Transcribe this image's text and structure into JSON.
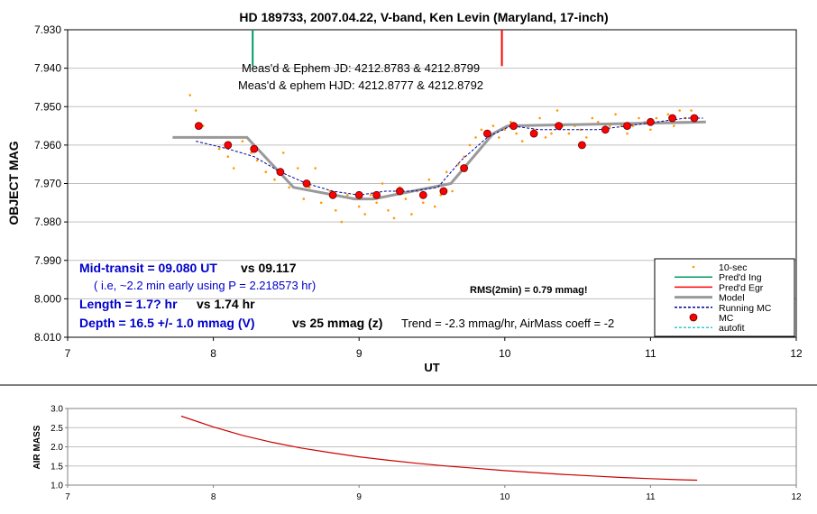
{
  "chart_data": [
    {
      "type": "scatter",
      "title": "HD 189733, 2007.04.22, V-band, Ken Levin (Maryland, 17-inch)",
      "xlabel": "UT",
      "ylabel": "OBJECT MAG",
      "xlim": [
        7,
        12
      ],
      "ylim": [
        7.93,
        8.01
      ],
      "y_inverted": true,
      "grid": "horizontal",
      "x_ticks": [
        "7",
        "8",
        "9",
        "10",
        "11",
        "12"
      ],
      "y_ticks": [
        "7.930",
        "7.940",
        "7.950",
        "7.960",
        "7.970",
        "7.980",
        "7.990",
        "8.000",
        "8.010"
      ],
      "legend_position": "bottom-right",
      "series": [
        {
          "name": "10-sec",
          "color": "#ff9900",
          "x": [
            7.84,
            7.88,
            7.93,
            7.98,
            8.04,
            8.1,
            8.14,
            8.2,
            8.26,
            8.3,
            8.36,
            8.42,
            8.48,
            8.52,
            8.58,
            8.62,
            8.66,
            8.7,
            8.74,
            8.8,
            8.84,
            8.88,
            8.92,
            8.96,
            9.0,
            9.04,
            9.08,
            9.12,
            9.16,
            9.2,
            9.24,
            9.28,
            9.32,
            9.36,
            9.4,
            9.44,
            9.48,
            9.52,
            9.56,
            9.6,
            9.64,
            9.68,
            9.72,
            9.76,
            9.8,
            9.84,
            9.88,
            9.92,
            9.96,
            10.0,
            10.04,
            10.08,
            10.12,
            10.16,
            10.2,
            10.24,
            10.28,
            10.32,
            10.36,
            10.4,
            10.44,
            10.48,
            10.52,
            10.56,
            10.6,
            10.64,
            10.68,
            10.72,
            10.76,
            10.8,
            10.84,
            10.88,
            10.92,
            10.96,
            11.0,
            11.04,
            11.08,
            11.12,
            11.16,
            11.2,
            11.24,
            11.28
          ],
          "y": [
            7.947,
            7.951,
            7.955,
            7.958,
            7.961,
            7.963,
            7.966,
            7.959,
            7.962,
            7.964,
            7.967,
            7.969,
            7.962,
            7.971,
            7.966,
            7.974,
            7.971,
            7.966,
            7.975,
            7.972,
            7.977,
            7.98,
            7.973,
            7.974,
            7.976,
            7.978,
            7.973,
            7.975,
            7.97,
            7.977,
            7.979,
            7.971,
            7.974,
            7.978,
            7.972,
            7.975,
            7.969,
            7.976,
            7.973,
            7.967,
            7.972,
            7.965,
            7.963,
            7.96,
            7.958,
            7.956,
            7.957,
            7.955,
            7.958,
            7.956,
            7.954,
            7.957,
            7.959,
            7.955,
            7.956,
            7.953,
            7.958,
            7.957,
            7.951,
            7.955,
            7.957,
            7.955,
            7.956,
            7.958,
            7.953,
            7.954,
            7.956,
            7.955,
            7.952,
            7.955,
            7.957,
            7.955,
            7.953,
            7.954,
            7.956,
            7.953,
            7.954,
            7.952,
            7.955,
            7.951,
            7.953,
            7.951
          ]
        },
        {
          "name": "Pred'd Ing",
          "color": "#009966",
          "x": [
            8.27,
            8.27
          ],
          "y": [
            7.93,
            7.935
          ]
        },
        {
          "name": "Pred'd Egr",
          "color": "#ff0000",
          "x": [
            9.98,
            9.98
          ],
          "y": [
            7.93,
            7.935
          ]
        },
        {
          "name": "Model",
          "color": "#999999",
          "x": [
            7.72,
            8.23,
            8.55,
            8.97,
            9.1,
            9.63,
            9.92,
            10.02,
            11.38
          ],
          "y": [
            7.958,
            7.958,
            7.971,
            7.974,
            7.974,
            7.97,
            7.957,
            7.955,
            7.954
          ]
        },
        {
          "name": "Running MC",
          "color": "#000099",
          "x": [
            7.88,
            8.1,
            8.28,
            8.46,
            8.64,
            8.82,
            9.0,
            9.18,
            9.36,
            9.54,
            9.7,
            9.88,
            10.04,
            10.24,
            10.44,
            10.64,
            10.84,
            11.04,
            11.24,
            11.36
          ],
          "y": [
            7.959,
            7.961,
            7.963,
            7.967,
            7.97,
            7.972,
            7.973,
            7.972,
            7.972,
            7.971,
            7.964,
            7.958,
            7.955,
            7.956,
            7.956,
            7.956,
            7.955,
            7.954,
            7.953,
            7.953
          ]
        },
        {
          "name": "MC",
          "color": "#ff0000",
          "x": [
            7.9,
            8.1,
            8.28,
            8.46,
            8.64,
            8.82,
            9.0,
            9.12,
            9.28,
            9.44,
            9.58,
            9.72,
            9.88,
            10.06,
            10.2,
            10.37,
            10.53,
            10.69,
            10.84,
            11.0,
            11.15,
            11.3
          ],
          "y": [
            7.955,
            7.96,
            7.961,
            7.967,
            7.97,
            7.973,
            7.973,
            7.973,
            7.972,
            7.973,
            7.972,
            7.966,
            7.957,
            7.955,
            7.957,
            7.955,
            7.96,
            7.956,
            7.955,
            7.954,
            7.953,
            7.953
          ]
        },
        {
          "name": "autofit",
          "color": "#33cccc",
          "x": [],
          "y": []
        }
      ],
      "annotations": {
        "jd": "Meas'd & Ephem JD: 4212.8783 & 4212.8799",
        "hjd": "Meas'd & ephem HJD: 4212.8777 & 4212.8792",
        "mid_transit": "Mid-transit = 09.080 UT",
        "mid_transit_vs": "vs 09.117",
        "early_note": "( i.e, ~2.2 min early using P = 2.218573 hr)",
        "length": "Length = 1.7? hr",
        "length_vs": "vs 1.74 hr",
        "depth": "Depth = 16.5 +/- 1.0 mmag (V)",
        "depth_vs": "vs 25 mmag (z)",
        "rms": "RMS(2min) = 0.79 mmag!",
        "trend": "Trend = -2.3 mmag/hr, AirMass coeff = -2"
      }
    },
    {
      "type": "line",
      "title": "",
      "xlabel": "",
      "ylabel": "AIR MASS",
      "xlim": [
        7,
        12
      ],
      "ylim": [
        1.0,
        3.0
      ],
      "grid": "horizontal",
      "x_ticks": [
        "7",
        "8",
        "9",
        "10",
        "11",
        "12"
      ],
      "y_ticks": [
        "3.0",
        "2.5",
        "2.0",
        "1.5",
        "1.0"
      ],
      "series": [
        {
          "color": "#cc0000",
          "x": [
            7.78,
            8.0,
            8.2,
            8.4,
            8.6,
            8.8,
            9.0,
            9.2,
            9.4,
            9.6,
            9.8,
            10.0,
            10.2,
            10.4,
            10.6,
            10.8,
            11.0,
            11.2,
            11.32
          ],
          "y": [
            2.8,
            2.52,
            2.3,
            2.12,
            1.97,
            1.85,
            1.74,
            1.65,
            1.57,
            1.5,
            1.44,
            1.38,
            1.33,
            1.28,
            1.24,
            1.2,
            1.17,
            1.14,
            1.13
          ]
        }
      ]
    }
  ]
}
